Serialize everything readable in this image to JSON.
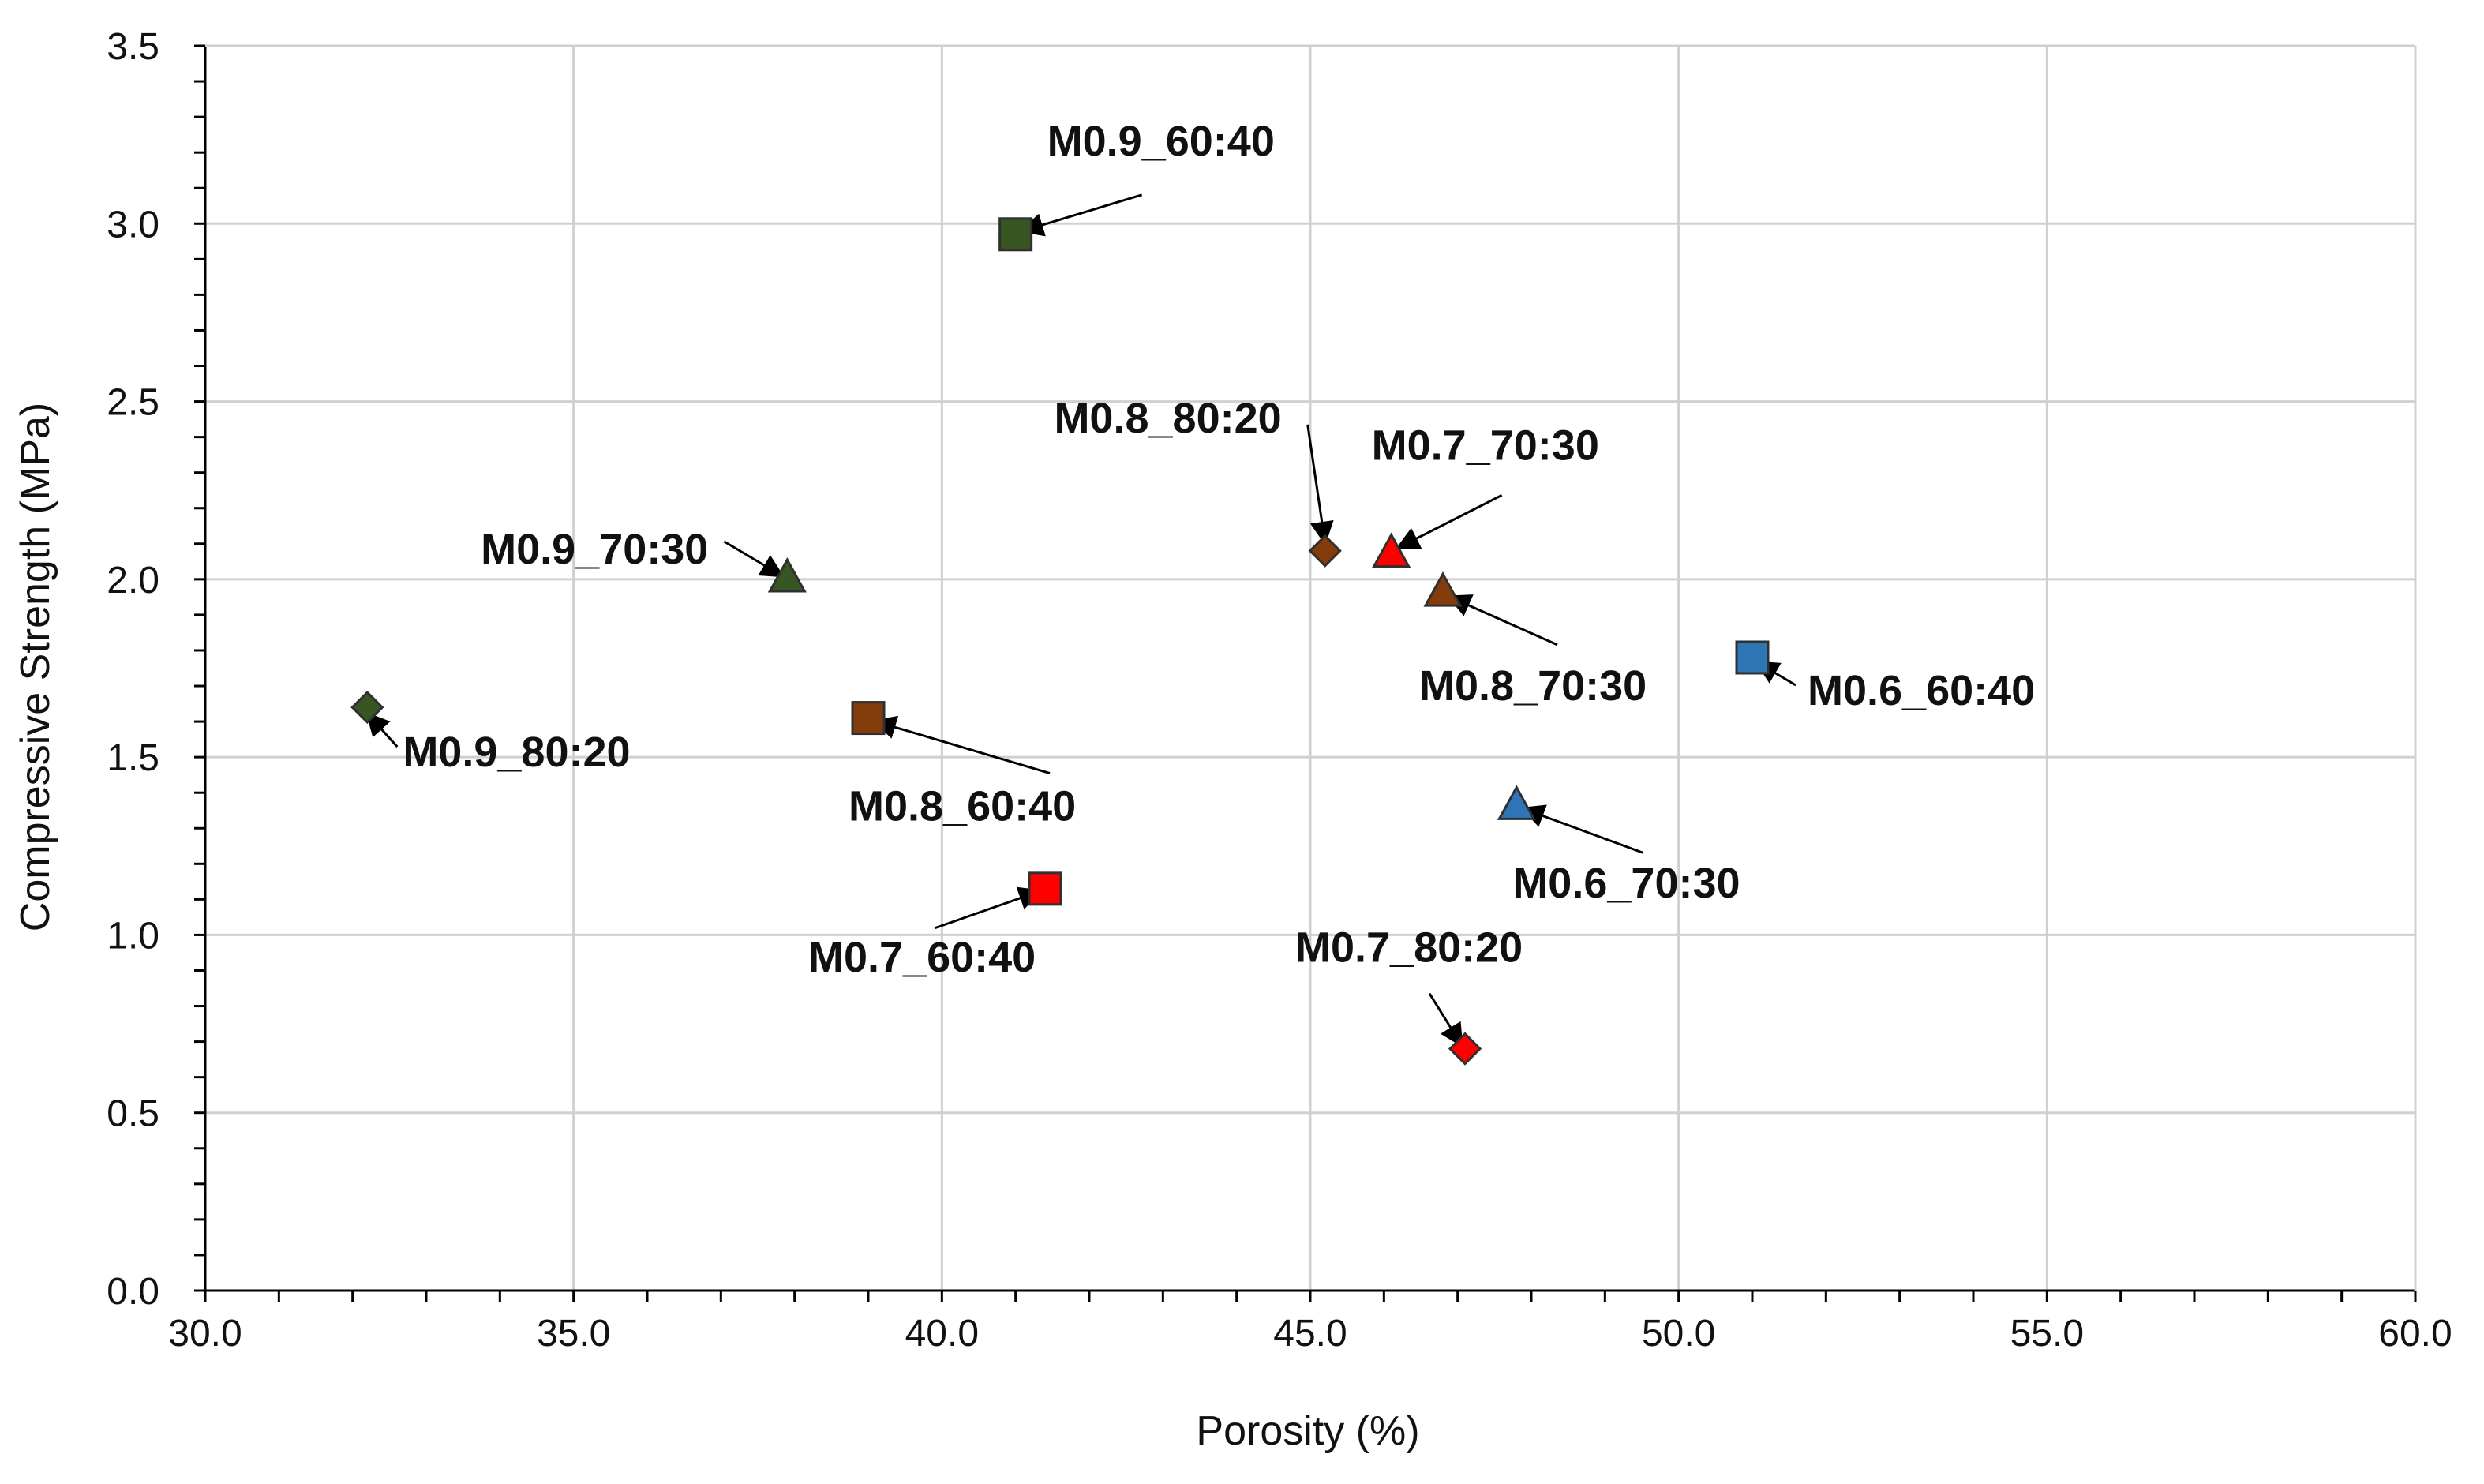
{
  "chart_data": {
    "type": "scatter",
    "title": "",
    "xlabel": "Porosity (%)",
    "ylabel": "Compressive Strength (MPa)",
    "xlim": [
      30.0,
      60.0
    ],
    "ylim": [
      0.0,
      3.5
    ],
    "x_ticks": [
      "30.0",
      "35.0",
      "40.0",
      "45.0",
      "50.0",
      "55.0",
      "60.0"
    ],
    "y_ticks": [
      "0.0",
      "0.5",
      "1.0",
      "1.5",
      "2.0",
      "2.5",
      "3.0",
      "3.5"
    ],
    "grid": true,
    "points": [
      {
        "label": "M0.9_60:40",
        "x": 41.0,
        "y": 2.97,
        "marker": "square",
        "color": "#375623"
      },
      {
        "label": "M0.9_70:30",
        "x": 37.9,
        "y": 2.0,
        "marker": "triangle",
        "color": "#375623"
      },
      {
        "label": "M0.9_80:20",
        "x": 32.2,
        "y": 1.64,
        "marker": "diamond",
        "color": "#375623"
      },
      {
        "label": "M0.8_60:40",
        "x": 39.0,
        "y": 1.61,
        "marker": "square",
        "color": "#843c0c"
      },
      {
        "label": "M0.8_70:30",
        "x": 46.8,
        "y": 1.96,
        "marker": "triangle",
        "color": "#843c0c"
      },
      {
        "label": "M0.8_80:20",
        "x": 45.2,
        "y": 2.08,
        "marker": "diamond",
        "color": "#843c0c"
      },
      {
        "label": "M0.7_60:40",
        "x": 41.4,
        "y": 1.13,
        "marker": "square",
        "color": "#ff0000"
      },
      {
        "label": "M0.7_70:30",
        "x": 46.1,
        "y": 2.07,
        "marker": "triangle",
        "color": "#ff0000"
      },
      {
        "label": "M0.7_80:20",
        "x": 47.1,
        "y": 0.68,
        "marker": "diamond",
        "color": "#ff0000"
      },
      {
        "label": "M0.6_60:40",
        "x": 51.0,
        "y": 1.78,
        "marker": "square",
        "color": "#2e75b6"
      },
      {
        "label": "M0.6_70:30",
        "x": 47.8,
        "y": 1.36,
        "marker": "triangle",
        "color": "#2e75b6"
      }
    ]
  }
}
